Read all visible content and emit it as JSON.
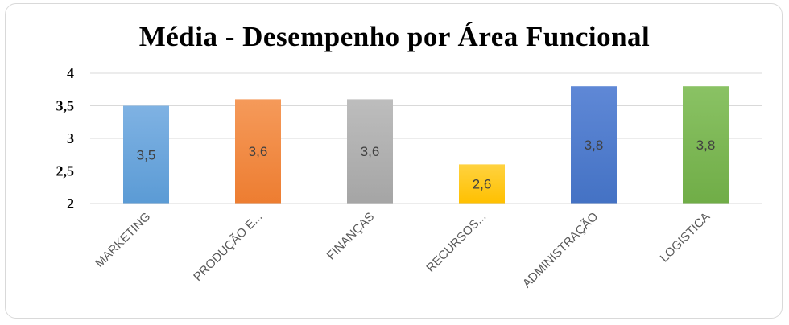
{
  "chart_data": {
    "type": "bar",
    "title": "Média - Desempenho por Área Funcional",
    "categories": [
      "MARKETING",
      "PRODUÇÃO E...",
      "FINANÇAS",
      "RECURSOS...",
      "ADMINISTRAÇÃO",
      "LOGISTICA"
    ],
    "values": [
      3.5,
      3.6,
      3.6,
      2.6,
      3.8,
      3.8
    ],
    "data_labels": [
      "3,5",
      "3,6",
      "3,6",
      "2,6",
      "3,8",
      "3,8"
    ],
    "colors": [
      "#5b9bd5",
      "#ed7d31",
      "#a5a5a5",
      "#ffc000",
      "#4472c4",
      "#70ad47"
    ],
    "colors_light": [
      "#7fb2e3",
      "#f59a5a",
      "#bdbdbd",
      "#ffd23f",
      "#5f88d6",
      "#8ac264"
    ],
    "ylim": [
      2,
      4
    ],
    "yticks": [
      2,
      2.5,
      3,
      3.5,
      4
    ],
    "ytick_labels": [
      "2",
      "2,5",
      "3",
      "3,5",
      "4"
    ],
    "grid": true,
    "legend": "none"
  }
}
